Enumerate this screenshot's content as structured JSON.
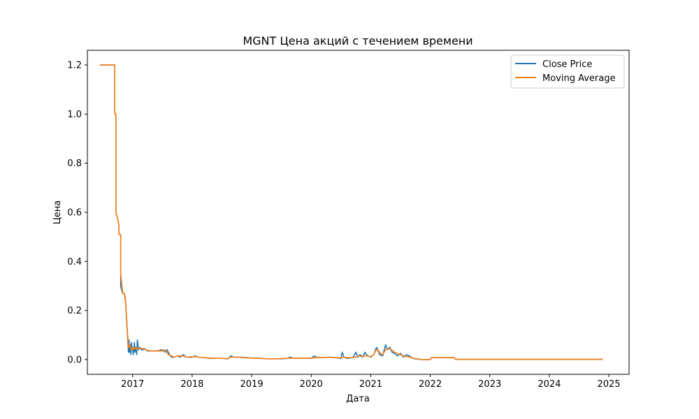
{
  "chart_data": {
    "type": "line",
    "title": "MGNT Цена акций с течением времени",
    "xlabel": "Дата",
    "ylabel": "Цена",
    "xlim": [
      2016.24,
      2025.34
    ],
    "ylim": [
      -0.06,
      1.26
    ],
    "x_ticks": [
      2017,
      2018,
      2019,
      2020,
      2021,
      2022,
      2023,
      2024,
      2025
    ],
    "x_tick_labels": [
      "2017",
      "2018",
      "2019",
      "2020",
      "2021",
      "2022",
      "2023",
      "2024",
      "2025"
    ],
    "y_ticks": [
      0.0,
      0.2,
      0.4,
      0.6,
      0.8,
      1.0,
      1.2
    ],
    "y_tick_labels": [
      "0.0",
      "0.2",
      "0.4",
      "0.6",
      "0.8",
      "1.0",
      "1.2"
    ],
    "grid": false,
    "legend_position": "top-right",
    "series": [
      {
        "name": "Close Price",
        "color": "#1f77b4",
        "x": [
          2016.45,
          2016.7,
          2016.7,
          2016.72,
          2016.72,
          2016.77,
          2016.77,
          2016.78,
          2016.79,
          2016.8,
          2016.8,
          2016.83,
          2016.83,
          2016.85,
          2016.86,
          2016.88,
          2016.88,
          2016.93,
          2016.94,
          2016.94,
          2016.95,
          2016.96,
          2016.97,
          2016.98,
          2016.99,
          2017.0,
          2017.01,
          2017.02,
          2017.03,
          2017.04,
          2017.05,
          2017.06,
          2017.07,
          2017.08,
          2017.1,
          2017.12,
          2017.15,
          2017.18,
          2017.2,
          2017.25,
          2017.3,
          2017.4,
          2017.5,
          2017.55,
          2017.58,
          2017.62,
          2017.65,
          2017.7,
          2017.75,
          2017.8,
          2017.85,
          2017.9,
          2018.0,
          2018.05,
          2018.1,
          2018.2,
          2018.3,
          2018.4,
          2018.5,
          2018.6,
          2018.65,
          2018.7,
          2018.8,
          2018.9,
          2019.0,
          2019.1,
          2019.2,
          2019.3,
          2019.4,
          2019.5,
          2019.6,
          2019.65,
          2019.7,
          2019.8,
          2019.9,
          2020.0,
          2020.05,
          2020.1,
          2020.2,
          2020.3,
          2020.4,
          2020.5,
          2020.52,
          2020.55,
          2020.6,
          2020.7,
          2020.75,
          2020.78,
          2020.82,
          2020.87,
          2020.9,
          2020.95,
          2021.0,
          2021.05,
          2021.08,
          2021.1,
          2021.15,
          2021.2,
          2021.25,
          2021.28,
          2021.32,
          2021.36,
          2021.4,
          2021.45,
          2021.5,
          2021.55,
          2021.6,
          2021.65,
          2021.7,
          2021.75,
          2021.8,
          2021.85,
          2022.0,
          2022.02,
          2022.4,
          2022.42,
          2024.9
        ],
        "y": [
          1.2,
          1.2,
          1.0,
          1.0,
          0.6,
          0.55,
          0.51,
          0.51,
          0.51,
          0.51,
          0.3,
          0.27,
          0.27,
          0.27,
          0.27,
          0.24,
          0.24,
          0.03,
          0.08,
          0.05,
          0.03,
          0.06,
          0.02,
          0.07,
          0.04,
          0.05,
          0.02,
          0.04,
          0.07,
          0.03,
          0.05,
          0.04,
          0.02,
          0.08,
          0.04,
          0.05,
          0.04,
          0.04,
          0.045,
          0.035,
          0.035,
          0.035,
          0.04,
          0.03,
          0.04,
          0.02,
          0.01,
          0.01,
          0.015,
          0.01,
          0.02,
          0.01,
          0.01,
          0.015,
          0.01,
          0.008,
          0.005,
          0.005,
          0.005,
          0.003,
          0.015,
          0.01,
          0.01,
          0.008,
          0.006,
          0.006,
          0.004,
          0.003,
          0.003,
          0.003,
          0.005,
          0.01,
          0.005,
          0.005,
          0.006,
          0.005,
          0.015,
          0.008,
          0.008,
          0.01,
          0.008,
          0.005,
          0.03,
          0.01,
          0.005,
          0.008,
          0.03,
          0.01,
          0.02,
          0.01,
          0.03,
          0.015,
          0.01,
          0.02,
          0.04,
          0.05,
          0.02,
          0.015,
          0.06,
          0.04,
          0.05,
          0.03,
          0.025,
          0.015,
          0.025,
          0.01,
          0.02,
          0.015,
          0.005,
          0.003,
          0.002,
          0.0,
          0.0,
          0.008,
          0.008,
          0.001,
          0.001
        ]
      },
      {
        "name": "Moving Average",
        "color": "#ff7f0e",
        "x": [
          2016.45,
          2016.7,
          2016.7,
          2016.72,
          2016.72,
          2016.77,
          2016.77,
          2016.78,
          2016.79,
          2016.8,
          2016.8,
          2016.83,
          2016.83,
          2016.85,
          2016.86,
          2016.88,
          2016.89,
          2016.93,
          2016.95,
          2016.97,
          2016.99,
          2017.01,
          2017.03,
          2017.05,
          2017.07,
          2017.09,
          2017.12,
          2017.15,
          2017.18,
          2017.22,
          2017.3,
          2017.4,
          2017.5,
          2017.55,
          2017.6,
          2017.65,
          2017.7,
          2017.75,
          2017.8,
          2017.85,
          2017.9,
          2018.0,
          2018.05,
          2018.1,
          2018.2,
          2018.3,
          2018.4,
          2018.5,
          2018.6,
          2018.65,
          2018.7,
          2018.8,
          2018.9,
          2019.0,
          2019.1,
          2019.2,
          2019.3,
          2019.4,
          2019.5,
          2019.6,
          2019.7,
          2019.8,
          2019.9,
          2020.0,
          2020.1,
          2020.2,
          2020.3,
          2020.4,
          2020.5,
          2020.55,
          2020.6,
          2020.7,
          2020.75,
          2020.8,
          2020.85,
          2020.9,
          2020.95,
          2021.0,
          2021.05,
          2021.08,
          2021.12,
          2021.16,
          2021.2,
          2021.25,
          2021.3,
          2021.35,
          2021.4,
          2021.45,
          2021.5,
          2021.55,
          2021.6,
          2021.65,
          2021.7,
          2021.75,
          2021.8,
          2021.85,
          2022.0,
          2022.02,
          2022.4,
          2022.42,
          2024.9
        ],
        "y": [
          1.2,
          1.2,
          1.0,
          1.0,
          0.6,
          0.55,
          0.51,
          0.51,
          0.51,
          0.51,
          0.35,
          0.28,
          0.27,
          0.27,
          0.27,
          0.25,
          0.2,
          0.05,
          0.06,
          0.04,
          0.05,
          0.04,
          0.05,
          0.045,
          0.04,
          0.05,
          0.045,
          0.045,
          0.045,
          0.04,
          0.035,
          0.035,
          0.035,
          0.04,
          0.02,
          0.015,
          0.01,
          0.015,
          0.015,
          0.015,
          0.01,
          0.012,
          0.012,
          0.01,
          0.008,
          0.006,
          0.005,
          0.005,
          0.004,
          0.01,
          0.01,
          0.009,
          0.007,
          0.006,
          0.005,
          0.004,
          0.003,
          0.003,
          0.004,
          0.005,
          0.006,
          0.005,
          0.006,
          0.006,
          0.008,
          0.008,
          0.009,
          0.008,
          0.007,
          0.01,
          0.008,
          0.008,
          0.01,
          0.015,
          0.012,
          0.015,
          0.015,
          0.012,
          0.02,
          0.035,
          0.04,
          0.025,
          0.02,
          0.04,
          0.045,
          0.04,
          0.03,
          0.025,
          0.02,
          0.015,
          0.012,
          0.01,
          0.006,
          0.004,
          0.003,
          0.0,
          0.0,
          0.008,
          0.008,
          0.001,
          0.001
        ]
      }
    ]
  }
}
